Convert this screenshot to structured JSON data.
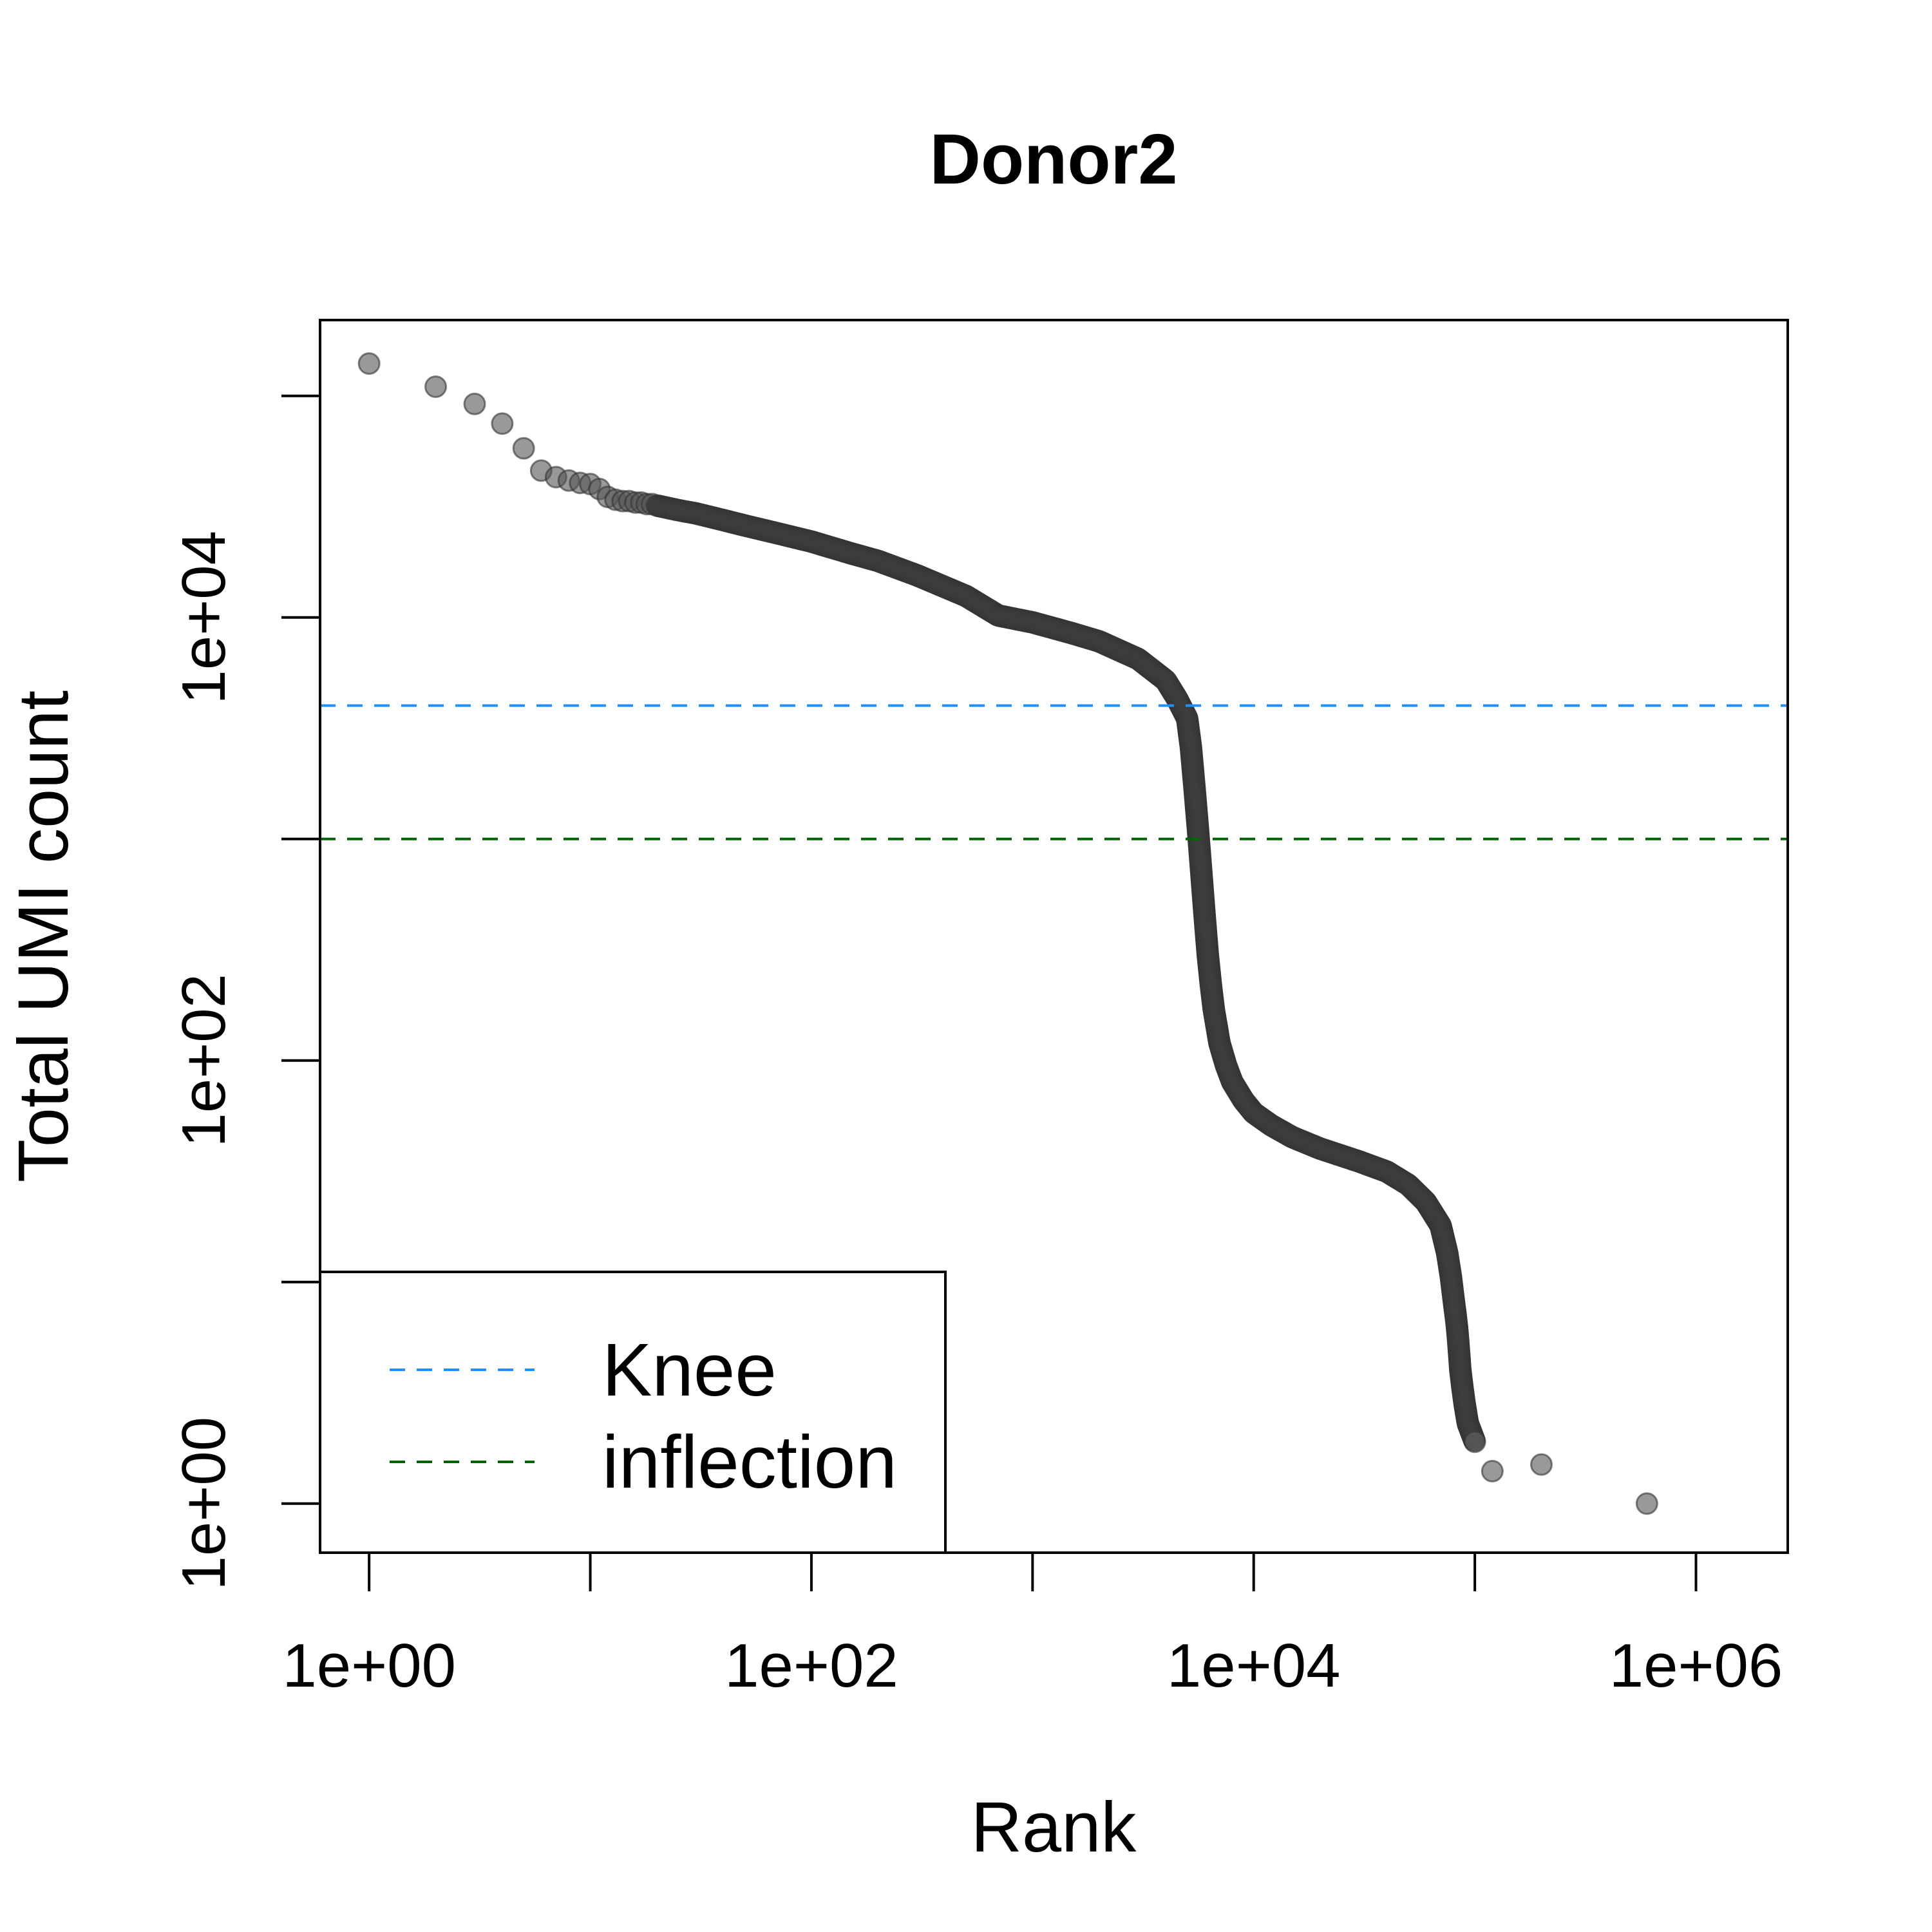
{
  "chart_data": {
    "type": "scatter",
    "title": "Donor2",
    "xlabel": "Rank",
    "ylabel": "Total UMI count",
    "x_scale": "log10",
    "y_scale": "log10",
    "xlim": [
      0.6,
      2600000
    ],
    "ylim": [
      0.6,
      220000
    ],
    "x_ticks": [
      1,
      10,
      100,
      1000,
      10000,
      100000,
      1000000
    ],
    "x_tick_labels": [
      "1e+00",
      "",
      "1e+02",
      "",
      "1e+04",
      "",
      "1e+06"
    ],
    "y_ticks": [
      1,
      10,
      100,
      1000,
      10000,
      100000
    ],
    "y_tick_labels": [
      "1e+00",
      "",
      "1e+02",
      "",
      "1e+04",
      ""
    ],
    "grid": false,
    "point_color": "#555555",
    "series": [
      {
        "x": [
          1,
          2,
          3,
          4,
          5,
          6,
          7,
          8,
          9,
          10,
          11,
          12,
          13,
          14,
          15,
          16,
          17,
          18,
          19,
          20,
          25,
          30,
          40,
          50,
          70,
          100,
          150,
          200,
          300,
          500,
          700,
          1000,
          1500,
          2000,
          3000,
          4000,
          4500,
          5000,
          5200,
          5400,
          5600,
          5800,
          6000,
          6200,
          6400,
          6600,
          7000,
          7500,
          8000,
          9000,
          10000,
          12000,
          15000,
          20000,
          30000,
          40000,
          50000,
          60000,
          70000,
          75000,
          78000,
          80000,
          82000,
          83000,
          84000,
          85000,
          86000,
          88000,
          90000,
          93000,
          100000,
          120000,
          200000,
          600000
        ],
        "y": [
          140000,
          110000,
          92000,
          75000,
          58000,
          46000,
          43000,
          41500,
          40500,
          40000,
          38000,
          35000,
          34000,
          33500,
          33500,
          33000,
          33000,
          32500,
          32500,
          32000,
          30500,
          29500,
          27500,
          26000,
          24000,
          22000,
          19500,
          18000,
          15500,
          12500,
          10200,
          9500,
          8500,
          7800,
          6500,
          5200,
          4300,
          3500,
          2600,
          1700,
          1100,
          700,
          450,
          300,
          220,
          170,
          120,
          95,
          80,
          66,
          58,
          51,
          45,
          40,
          35,
          31.5,
          27.5,
          23,
          18,
          13.5,
          10.5,
          8.5,
          7,
          6.3,
          5.5,
          4.7,
          4,
          3.3,
          2.8,
          2.3,
          1.9,
          1.4,
          1.5,
          1
        ]
      }
    ],
    "hlines": [
      {
        "name": "Knee",
        "y": 4000,
        "color": "#1E90FF",
        "dash": "dashed"
      },
      {
        "name": "inflection",
        "y": 1000,
        "color": "#006400",
        "dash": "dashed"
      }
    ],
    "legend": {
      "position": "bottom-left",
      "entries": [
        "Knee",
        "inflection"
      ]
    }
  }
}
